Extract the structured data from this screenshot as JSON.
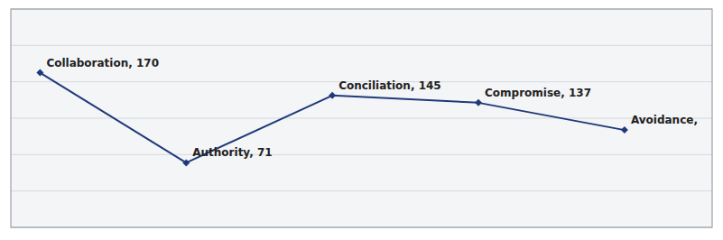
{
  "chart_data": {
    "type": "line",
    "categories": [
      "Collaboration",
      "Authority",
      "Conciliation",
      "Compromise",
      "Avoidance"
    ],
    "values": [
      170,
      71,
      145,
      137,
      107
    ],
    "value_labels": [
      "Collaboration, 170",
      "Authority, 71",
      "Conciliation, 145",
      "Compromise, 137",
      "Avoidance,"
    ],
    "data_labels": true,
    "color": "#1F3A7A",
    "marker": "diamond",
    "ylim": [
      0,
      240
    ],
    "yticks": [
      0,
      40,
      80,
      120,
      160,
      200,
      240
    ],
    "grid": true,
    "tick_labels": false
  }
}
